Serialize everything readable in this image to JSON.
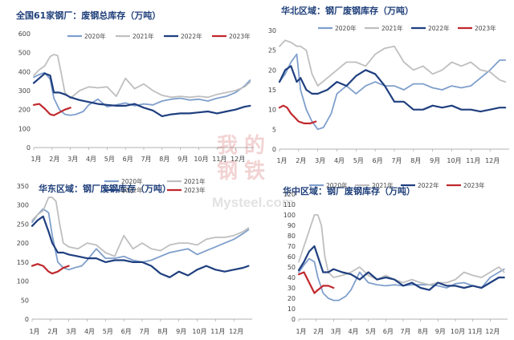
{
  "colors": {
    "s2020": "#7f9fcc",
    "s2021": "#bfbfbf",
    "s2022": "#1f3f7f",
    "s2023": "#c0282d"
  },
  "watermark": {
    "chinese": [
      "我",
      "的",
      "钢",
      "铁"
    ],
    "latin": "Mysteel.com"
  },
  "chart_data": [
    {
      "type": "line",
      "title": "全国61家钢厂：废钢总库存（万吨）",
      "categories": [
        "1月",
        "2月",
        "3月",
        "4月",
        "5月",
        "6月",
        "7月",
        "8月",
        "9月",
        "10月",
        "11月",
        "12月"
      ],
      "ylim": [
        0,
        600
      ],
      "yticks": [
        0,
        100,
        200,
        300,
        400,
        500,
        600
      ],
      "legend": [
        "2020年",
        "2021年",
        "2022年",
        "2023年"
      ],
      "series": [
        {
          "name": "2020年",
          "x": [
            1,
            1.3,
            1.6,
            1.9,
            2.1,
            2.4,
            2.7,
            3,
            3.3,
            3.7,
            4,
            4.5,
            5,
            5.5,
            6,
            6.5,
            7,
            7.5,
            8,
            8.5,
            9,
            9.5,
            10,
            10.5,
            11,
            11.5,
            12,
            12.5,
            12.8
          ],
          "values": [
            370,
            385,
            395,
            360,
            260,
            200,
            175,
            170,
            175,
            190,
            225,
            255,
            215,
            225,
            235,
            220,
            230,
            225,
            245,
            255,
            260,
            250,
            255,
            245,
            260,
            270,
            290,
            325,
            355
          ]
        },
        {
          "name": "2021年",
          "x": [
            1,
            1.3,
            1.6,
            1.9,
            2.1,
            2.3,
            2.5,
            2.7,
            3,
            3.5,
            4,
            4.5,
            5,
            5.5,
            6,
            6.5,
            7,
            7.5,
            8,
            8.5,
            9,
            9.5,
            10,
            10.5,
            11,
            11.5,
            12,
            12.5,
            12.8
          ],
          "values": [
            380,
            410,
            430,
            480,
            490,
            485,
            390,
            290,
            260,
            300,
            320,
            315,
            320,
            270,
            365,
            310,
            335,
            300,
            275,
            265,
            270,
            265,
            270,
            265,
            280,
            290,
            300,
            320,
            345
          ]
        },
        {
          "name": "2022年",
          "x": [
            1,
            1.3,
            1.6,
            1.9,
            2.1,
            2.4,
            2.7,
            3,
            3.5,
            4,
            4.5,
            5,
            5.5,
            6,
            6.5,
            7,
            7.5,
            8,
            8.5,
            9,
            9.5,
            10,
            10.5,
            11,
            11.5,
            12,
            12.5,
            12.8
          ],
          "values": [
            340,
            365,
            390,
            380,
            290,
            290,
            280,
            265,
            250,
            240,
            230,
            225,
            220,
            220,
            230,
            210,
            195,
            165,
            175,
            180,
            180,
            185,
            190,
            180,
            190,
            200,
            215,
            220
          ]
        },
        {
          "name": "2023年",
          "x": [
            1,
            1.3,
            1.6,
            1.9,
            2.1,
            2.4,
            2.7,
            3
          ],
          "values": [
            225,
            230,
            205,
            175,
            170,
            185,
            200,
            210
          ]
        }
      ]
    },
    {
      "type": "line",
      "title": "华北区域：钢厂废钢库存（万吨）",
      "categories": [
        "1月",
        "2月",
        "3月",
        "4月",
        "5月",
        "6月",
        "7月",
        "8月",
        "9月",
        "10月",
        "11月",
        "12月"
      ],
      "ylim": [
        0,
        30
      ],
      "yticks": [
        0,
        5,
        10,
        15,
        20,
        25,
        30
      ],
      "legend": [
        "2020年",
        "2021年",
        "2022年",
        "2023年"
      ],
      "series": [
        {
          "name": "2020年",
          "x": [
            1,
            1.3,
            1.6,
            1.9,
            2.1,
            2.4,
            2.7,
            3,
            3.3,
            3.7,
            4,
            4.5,
            5,
            5.5,
            6,
            6.5,
            7,
            7.5,
            8,
            8.5,
            9,
            9.5,
            10,
            10.5,
            11,
            11.5,
            12,
            12.5,
            12.8
          ],
          "values": [
            17,
            19,
            22,
            24,
            15,
            10,
            7,
            5,
            5.5,
            9,
            14,
            16,
            14,
            16,
            17,
            16,
            16,
            15,
            16.5,
            16.5,
            15.5,
            15,
            16,
            15.5,
            16,
            18,
            20,
            22.5,
            22.5
          ]
        },
        {
          "name": "2021年",
          "x": [
            1,
            1.3,
            1.6,
            1.9,
            2.1,
            2.4,
            2.7,
            3,
            3.5,
            4,
            4.5,
            5,
            5.5,
            6,
            6.5,
            7,
            7.5,
            8,
            8.5,
            9,
            9.5,
            10,
            10.5,
            11,
            11.5,
            12,
            12.5,
            12.8
          ],
          "values": [
            26,
            27.5,
            27,
            26,
            26,
            25,
            19,
            16,
            18,
            20,
            22,
            22,
            21,
            24,
            25.5,
            26,
            22,
            20,
            21,
            19,
            20,
            22,
            21,
            22,
            20,
            19.5,
            17.5,
            17
          ]
        },
        {
          "name": "2022年",
          "x": [
            1,
            1.3,
            1.6,
            1.9,
            2.1,
            2.4,
            2.7,
            3,
            3.5,
            4,
            4.5,
            5,
            5.5,
            6,
            6.5,
            7,
            7.5,
            8,
            8.5,
            9,
            9.5,
            10,
            10.5,
            11,
            11.5,
            12,
            12.5,
            12.8
          ],
          "values": [
            17,
            20,
            21,
            17,
            18,
            15,
            14,
            14,
            15,
            17,
            16,
            18.5,
            20,
            19,
            16,
            12,
            12,
            10,
            10,
            11,
            10.5,
            11,
            10,
            10,
            9.5,
            10,
            10.5,
            10.5
          ]
        },
        {
          "name": "2023年",
          "x": [
            1,
            1.2,
            1.4,
            1.6,
            1.8,
            2,
            2.3,
            2.6,
            2.9
          ],
          "values": [
            10.5,
            11,
            10.5,
            9,
            8,
            7,
            6.5,
            6.5,
            7
          ]
        }
      ]
    },
    {
      "type": "line",
      "title": "华东区域：钢厂废钢库存（万吨）",
      "categories": [
        "1月",
        "2月",
        "3月",
        "4月",
        "5月",
        "6月",
        "7月",
        "8月",
        "9月",
        "10月",
        "11月",
        "12月"
      ],
      "ylim": [
        0,
        350
      ],
      "yticks": [
        0,
        50,
        100,
        150,
        200,
        250,
        300,
        350
      ],
      "legend": [
        "2020年",
        "2021年",
        "2022年",
        "2023年"
      ],
      "series": [
        {
          "name": "2020年",
          "x": [
            1,
            1.3,
            1.6,
            1.9,
            2.1,
            2.4,
            2.7,
            3,
            3.3,
            3.7,
            4,
            4.5,
            5,
            5.5,
            6,
            6.5,
            7,
            7.5,
            8,
            8.5,
            9,
            9.5,
            10,
            10.5,
            11,
            11.5,
            12,
            12.5,
            12.8
          ],
          "values": [
            255,
            275,
            290,
            280,
            220,
            150,
            135,
            130,
            135,
            140,
            155,
            185,
            160,
            160,
            165,
            155,
            150,
            155,
            165,
            175,
            180,
            185,
            170,
            180,
            190,
            200,
            210,
            225,
            235
          ]
        },
        {
          "name": "2021年",
          "x": [
            1,
            1.3,
            1.6,
            1.9,
            2.1,
            2.3,
            2.5,
            2.7,
            3,
            3.5,
            4,
            4.5,
            5,
            5.5,
            6,
            6.5,
            7,
            7.5,
            8,
            8.5,
            9,
            9.5,
            10,
            10.5,
            11,
            11.5,
            12,
            12.5,
            12.8
          ],
          "values": [
            260,
            275,
            285,
            320,
            320,
            310,
            250,
            200,
            190,
            185,
            200,
            195,
            175,
            165,
            220,
            185,
            200,
            185,
            180,
            195,
            200,
            200,
            195,
            210,
            215,
            215,
            220,
            230,
            240
          ]
        },
        {
          "name": "2022年",
          "x": [
            1,
            1.3,
            1.6,
            1.9,
            2.1,
            2.4,
            2.7,
            3,
            3.5,
            4,
            4.5,
            5,
            5.5,
            6,
            6.5,
            7,
            7.5,
            8,
            8.5,
            9,
            9.5,
            10,
            10.5,
            11,
            11.5,
            12,
            12.5,
            12.8
          ],
          "values": [
            245,
            260,
            270,
            230,
            200,
            175,
            175,
            170,
            165,
            160,
            160,
            150,
            155,
            155,
            150,
            150,
            140,
            120,
            110,
            125,
            115,
            130,
            140,
            130,
            125,
            130,
            135,
            140
          ]
        },
        {
          "name": "2023年",
          "x": [
            1,
            1.3,
            1.6,
            1.9,
            2.1,
            2.4,
            2.7,
            3
          ],
          "values": [
            140,
            145,
            140,
            125,
            120,
            125,
            135,
            140
          ]
        }
      ]
    },
    {
      "type": "line",
      "title": "华中区域：钢厂废钢库存（万吨）",
      "categories": [
        "1月",
        "2月",
        "3月",
        "4月",
        "5月",
        "6月",
        "7月",
        "8月",
        "9月",
        "10月",
        "11月",
        "12月"
      ],
      "ylim": [
        0,
        120
      ],
      "yticks": [
        0,
        10,
        20,
        30,
        40,
        50,
        60,
        70,
        80,
        90,
        100,
        110,
        120
      ],
      "legend": [
        "2020年",
        "2021年",
        "2022年",
        "2023年"
      ],
      "series": [
        {
          "name": "2020年",
          "x": [
            1,
            1.3,
            1.6,
            1.9,
            2.1,
            2.4,
            2.7,
            3,
            3.3,
            3.7,
            4,
            4.5,
            5,
            5.5,
            6,
            6.5,
            7,
            7.5,
            8,
            8.5,
            9,
            9.5,
            10,
            10.5,
            11,
            11.5,
            12,
            12.5,
            12.8
          ],
          "values": [
            45,
            52,
            58,
            55,
            40,
            25,
            20,
            18,
            18,
            22,
            28,
            45,
            35,
            33,
            32,
            33,
            32,
            33,
            33,
            33,
            32,
            30,
            34,
            35,
            32,
            30,
            40,
            45,
            48
          ]
        },
        {
          "name": "2021年",
          "x": [
            1,
            1.3,
            1.6,
            1.9,
            2.1,
            2.3,
            2.5,
            2.7,
            3,
            3.5,
            4,
            4.5,
            5,
            5.5,
            6,
            6.5,
            7,
            7.5,
            8,
            8.5,
            9,
            9.5,
            10,
            10.5,
            11,
            11.5,
            12,
            12.5,
            12.8
          ],
          "values": [
            55,
            70,
            85,
            100,
            100,
            90,
            60,
            45,
            40,
            42,
            45,
            50,
            42,
            38,
            42,
            38,
            35,
            38,
            35,
            33,
            35,
            35,
            38,
            45,
            42,
            40,
            45,
            50,
            45
          ]
        },
        {
          "name": "2022年",
          "x": [
            1,
            1.3,
            1.6,
            1.9,
            2.1,
            2.4,
            2.7,
            3,
            3.5,
            4,
            4.5,
            5,
            5.5,
            6,
            6.5,
            7,
            7.5,
            8,
            8.5,
            9,
            9.5,
            10,
            10.5,
            11,
            11.5,
            12,
            12.5,
            12.8
          ],
          "values": [
            47,
            55,
            65,
            70,
            60,
            45,
            45,
            48,
            45,
            43,
            38,
            45,
            38,
            40,
            38,
            32,
            35,
            30,
            28,
            35,
            32,
            32,
            30,
            32,
            30,
            35,
            40,
            40
          ]
        },
        {
          "name": "2023年",
          "x": [
            1,
            1.3,
            1.6,
            1.9,
            2.1,
            2.4,
            2.7,
            3
          ],
          "values": [
            43,
            45,
            35,
            25,
            28,
            32,
            32,
            30
          ]
        }
      ]
    }
  ]
}
